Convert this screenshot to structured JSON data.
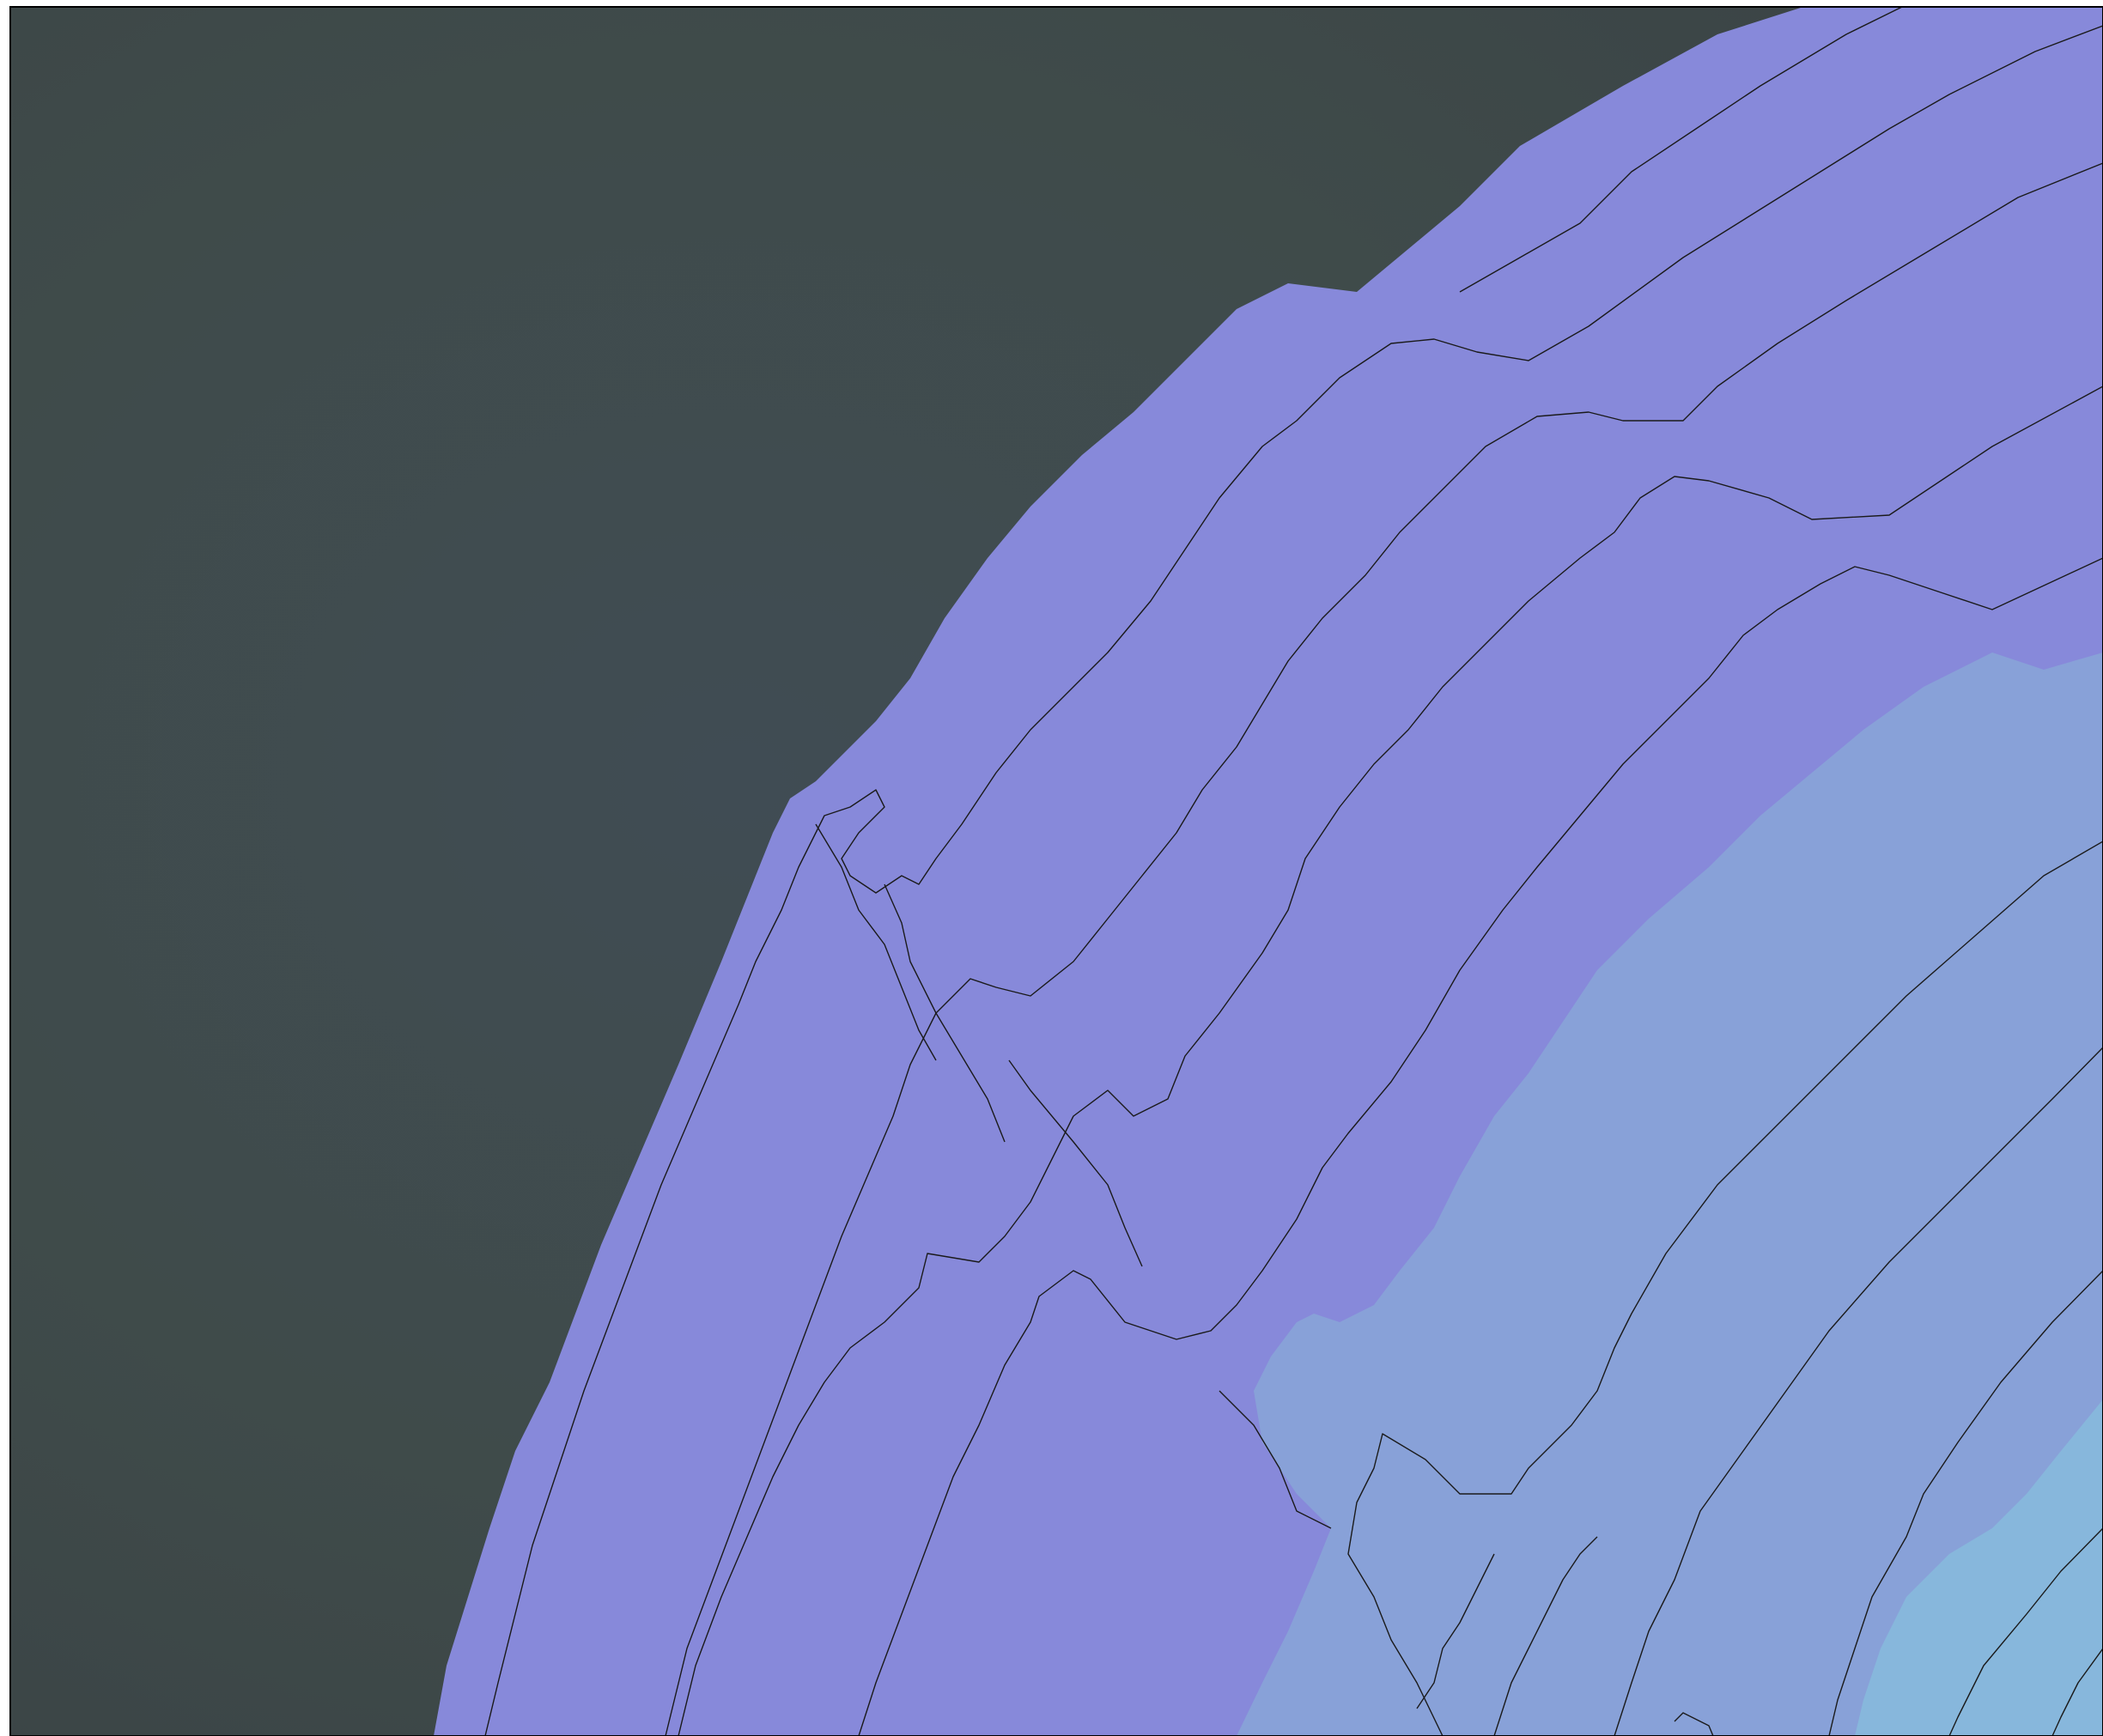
{
  "map": {
    "type": "filled-contour",
    "colors": {
      "background_dark": "#3f4a4b",
      "background_dark_alt": "#434a56",
      "zone_violet": "#8789da",
      "zone_periwinkle": "#88a1d8",
      "zone_light_blue": "#87b7dc",
      "contour_line": "#1a1a1a",
      "frame": "#000000"
    },
    "contours": {
      "level_count": 16,
      "line_style": "thin-jagged"
    }
  }
}
